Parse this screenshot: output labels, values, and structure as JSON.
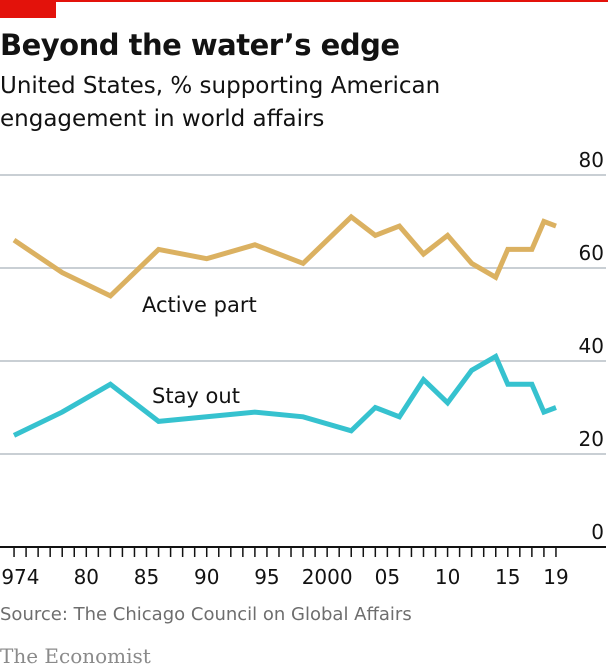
{
  "header": {
    "title": "Beyond the water’s edge",
    "subtitle": "United States, % supporting American engagement in world affairs"
  },
  "footer": {
    "source": "Source: The Chicago Council on Global Affairs",
    "brand": "The Economist"
  },
  "colors": {
    "accent": "#e3120b",
    "active_part": "#dbb161",
    "stay_out": "#36c2cf",
    "grid": "#c9cfd4",
    "axis": "#121212"
  },
  "chart_data": {
    "type": "line",
    "title": "Beyond the water’s edge",
    "subtitle": "United States, % supporting American engagement in world affairs",
    "xlabel": "",
    "ylabel": "",
    "xlim": [
      1973,
      2020
    ],
    "ylim": [
      0,
      80
    ],
    "y_ticks": [
      0,
      20,
      40,
      60,
      80
    ],
    "y_tick_labels": [
      "0",
      "20",
      "40",
      "60",
      "80"
    ],
    "x_ticks": [
      1974,
      1980,
      1985,
      1990,
      1995,
      2000,
      2005,
      2010,
      2015,
      2019
    ],
    "x_tick_labels": [
      "1974",
      "80",
      "85",
      "90",
      "95",
      "2000",
      "05",
      "10",
      "15",
      "19"
    ],
    "grid": true,
    "y_axis_side": "right",
    "legend": "inline labels",
    "series": [
      {
        "name": "Active part",
        "color": "#dbb161",
        "x": [
          1974,
          1978,
          1982,
          1986,
          1990,
          1994,
          1998,
          2002,
          2004,
          2006,
          2008,
          2010,
          2012,
          2014,
          2015,
          2016,
          2017,
          2018,
          2019
        ],
        "y": [
          66,
          59,
          54,
          64,
          62,
          65,
          61,
          71,
          67,
          69,
          63,
          67,
          61,
          58,
          64,
          64,
          64,
          70,
          69
        ]
      },
      {
        "name": "Stay out",
        "color": "#36c2cf",
        "x": [
          1974,
          1978,
          1982,
          1986,
          1990,
          1994,
          1998,
          2002,
          2004,
          2006,
          2008,
          2010,
          2012,
          2014,
          2015,
          2016,
          2017,
          2018,
          2019
        ],
        "y": [
          24,
          29,
          35,
          27,
          28,
          29,
          28,
          25,
          30,
          28,
          36,
          31,
          38,
          41,
          35,
          35,
          35,
          29,
          30
        ]
      }
    ]
  }
}
